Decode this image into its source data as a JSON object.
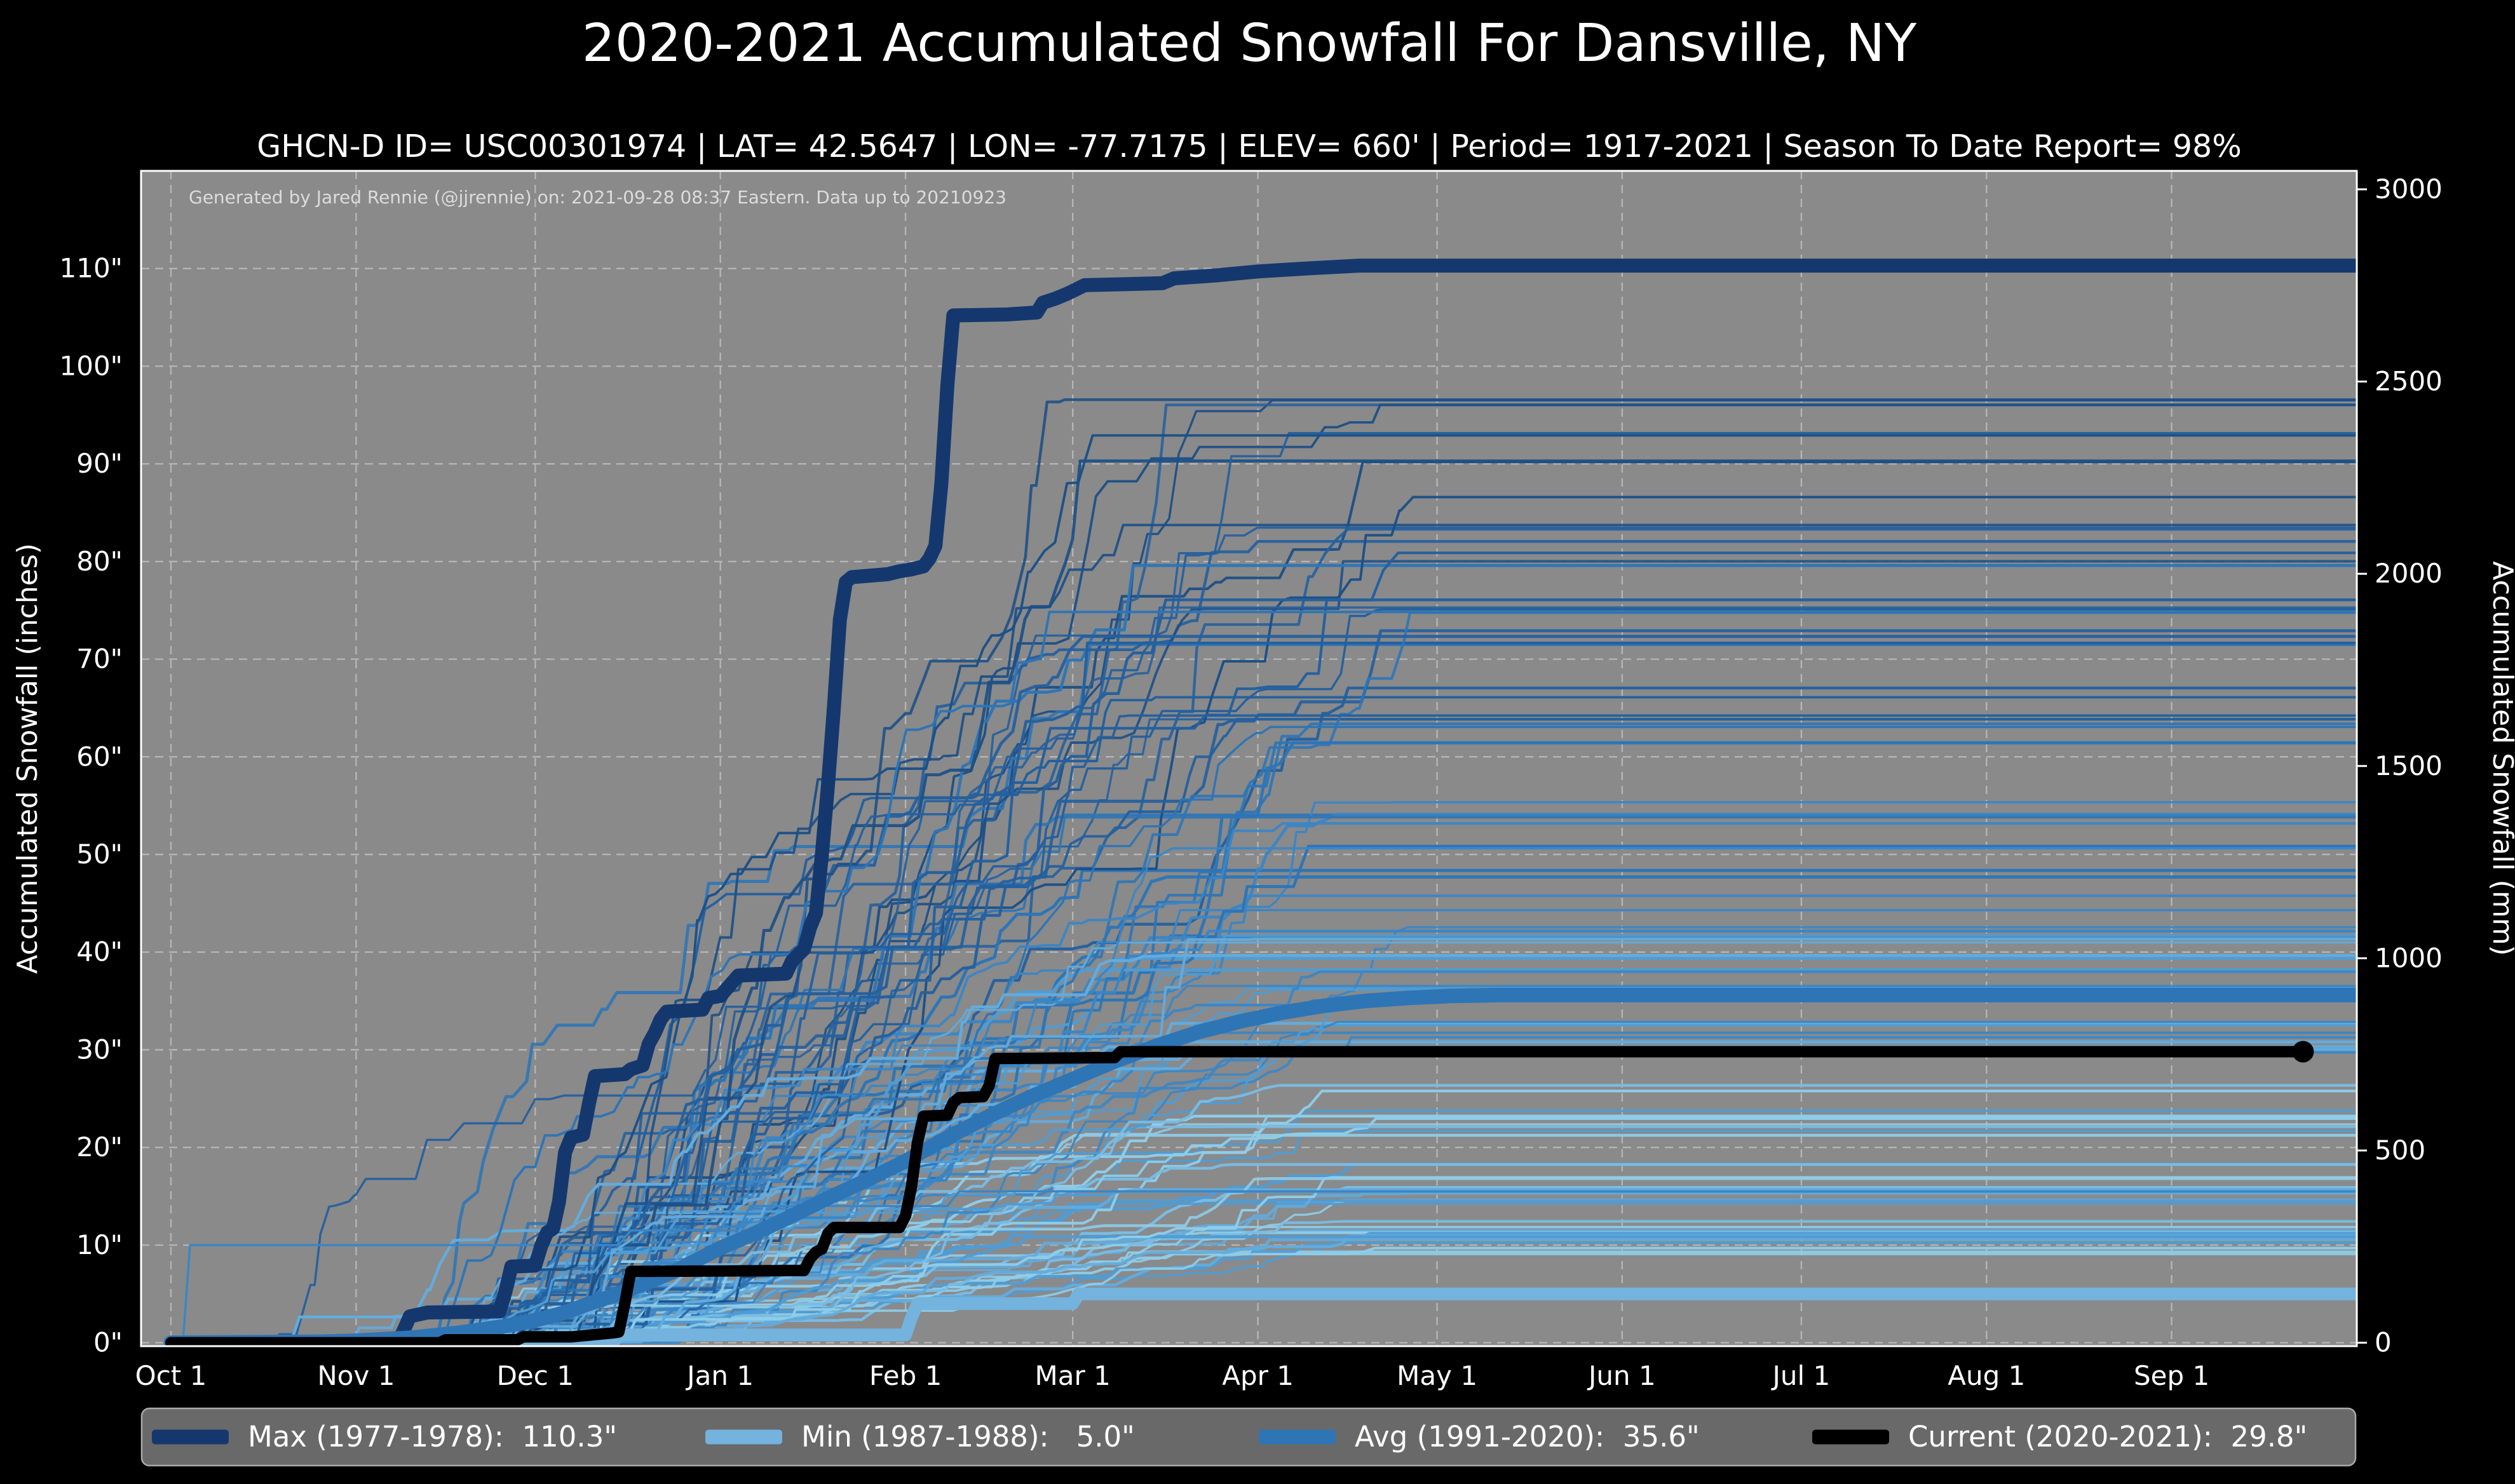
{
  "title": "2020-2021 Accumulated Snowfall For Dansville, NY",
  "subtitle": "GHCN-D ID= USC00301974 | LAT= 42.5647 | LON= -77.7175 | ELEV= 660' | Period= 1917-2021 | Season To Date Report= 98%",
  "annotation": "Generated by Jared Rennie (@jjrennie) on: 2021-09-28 08:37 Eastern. Data up to 20210923",
  "axes": {
    "left_title": "Accumulated Snowfall (inches)",
    "right_title": "Accumulated Snowfall (mm)",
    "x_tick_labels": [
      "Oct 1",
      "Nov 1",
      "Dec 1",
      "Jan 1",
      "Feb 1",
      "Mar 1",
      "Apr 1",
      "May 1",
      "Jun 1",
      "Jul 1",
      "Aug 1",
      "Sep 1"
    ],
    "x_tick_days": [
      0,
      31,
      61,
      92,
      123,
      151,
      182,
      212,
      243,
      273,
      304,
      335
    ],
    "y_ticks_inches": [
      0,
      10,
      20,
      30,
      40,
      50,
      60,
      70,
      80,
      90,
      100,
      110
    ],
    "y_ticks_mm": [
      0,
      500,
      1000,
      1500,
      2000,
      2500,
      3000
    ],
    "xlim_days": [
      -5,
      366
    ],
    "ylim_inches": [
      -0.35,
      120.0
    ],
    "grid": true
  },
  "chart_data": {
    "type": "line",
    "x_unit": "days since Oct 1",
    "series": [
      {
        "name": "max",
        "label": "Max (1977-1978)",
        "value": "110.3\"",
        "color": "#14386e",
        "width": 22,
        "points": [
          [
            0,
            0
          ],
          [
            38,
            0
          ],
          [
            39,
            1.3
          ],
          [
            40,
            2.7
          ],
          [
            43,
            3.1
          ],
          [
            55,
            3.2
          ],
          [
            56,
            5.2
          ],
          [
            57,
            7.8
          ],
          [
            61,
            7.9
          ],
          [
            62,
            9.9
          ],
          [
            63,
            11.3
          ],
          [
            64,
            11.7
          ],
          [
            65,
            14.5
          ],
          [
            66,
            19.5
          ],
          [
            67,
            21
          ],
          [
            69,
            21.3
          ],
          [
            70,
            24.5
          ],
          [
            71,
            27.3
          ],
          [
            76,
            27.5
          ],
          [
            77,
            28
          ],
          [
            79,
            28.4
          ],
          [
            80,
            30.6
          ],
          [
            81,
            31.7
          ],
          [
            82,
            33.1
          ],
          [
            83,
            33.9
          ],
          [
            89,
            34.1
          ],
          [
            90,
            35.3
          ],
          [
            92,
            35.5
          ],
          [
            94,
            36.9
          ],
          [
            95,
            37.6
          ],
          [
            103,
            37.8
          ],
          [
            104,
            39.1
          ],
          [
            105,
            39.7
          ],
          [
            106,
            40.3
          ],
          [
            107,
            42.5
          ],
          [
            108,
            44
          ],
          [
            109,
            50
          ],
          [
            110,
            57
          ],
          [
            111,
            65
          ],
          [
            112,
            74
          ],
          [
            113,
            77.9
          ],
          [
            114,
            78.4
          ],
          [
            120,
            78.7
          ],
          [
            122,
            79
          ],
          [
            124,
            79.2
          ],
          [
            126,
            79.5
          ],
          [
            127,
            80.3
          ],
          [
            128,
            81.6
          ],
          [
            129,
            88
          ],
          [
            130,
            98
          ],
          [
            131,
            105.2
          ],
          [
            140,
            105.3
          ],
          [
            145,
            105.5
          ],
          [
            146,
            106.5
          ],
          [
            148,
            106.9
          ],
          [
            150,
            107.4
          ],
          [
            153,
            108.3
          ],
          [
            166,
            108.5
          ],
          [
            168,
            109
          ],
          [
            175,
            109.3
          ],
          [
            182,
            109.7
          ],
          [
            190,
            110
          ],
          [
            199,
            110.3
          ],
          [
            366,
            110.3
          ]
        ]
      },
      {
        "name": "min",
        "label": "Min (1987-1988)",
        "value": "5.0\"",
        "color": "#73b3dd",
        "width": 20,
        "points": [
          [
            0,
            0
          ],
          [
            74,
            0
          ],
          [
            75,
            0.8
          ],
          [
            123,
            0.8
          ],
          [
            124,
            2.6
          ],
          [
            125,
            4
          ],
          [
            151,
            4
          ],
          [
            152,
            5
          ],
          [
            366,
            5
          ]
        ]
      },
      {
        "name": "avg",
        "label": "Avg (1991-2020)",
        "value": "35.6\"",
        "color": "#2e75b6",
        "width": 23,
        "points": [
          [
            0,
            0
          ],
          [
            25,
            0.1
          ],
          [
            31,
            0.2
          ],
          [
            40,
            0.5
          ],
          [
            48,
            1
          ],
          [
            56,
            1.7
          ],
          [
            61,
            2.3
          ],
          [
            66,
            3.1
          ],
          [
            70,
            4
          ],
          [
            75,
            5
          ],
          [
            80,
            6.2
          ],
          [
            85,
            7.5
          ],
          [
            92,
            9.7
          ],
          [
            97,
            11
          ],
          [
            103,
            12.7
          ],
          [
            110,
            14.8
          ],
          [
            116,
            16.5
          ],
          [
            123,
            18.6
          ],
          [
            130,
            21
          ],
          [
            137,
            23.2
          ],
          [
            144,
            25.2
          ],
          [
            151,
            27
          ],
          [
            158,
            28.8
          ],
          [
            165,
            30.4
          ],
          [
            172,
            31.8
          ],
          [
            179,
            32.9
          ],
          [
            186,
            33.8
          ],
          [
            193,
            34.5
          ],
          [
            200,
            35
          ],
          [
            207,
            35.3
          ],
          [
            214,
            35.5
          ],
          [
            222,
            35.6
          ],
          [
            366,
            35.6
          ]
        ]
      },
      {
        "name": "current",
        "label": "Current (2020-2021)",
        "value": "29.8\"",
        "color": "#000000",
        "width": 18,
        "end_dot": true,
        "points": [
          [
            0,
            0
          ],
          [
            45,
            0
          ],
          [
            46,
            0.3
          ],
          [
            58,
            0.3
          ],
          [
            59,
            0.6
          ],
          [
            67,
            0.6
          ],
          [
            74,
            1
          ],
          [
            75,
            1.1
          ],
          [
            76,
            4
          ],
          [
            77,
            7.3
          ],
          [
            106,
            7.4
          ],
          [
            107,
            8.6
          ],
          [
            108,
            9.3
          ],
          [
            109,
            9.6
          ],
          [
            110,
            11.2
          ],
          [
            111,
            11.8
          ],
          [
            122,
            11.8
          ],
          [
            123,
            13
          ],
          [
            124,
            16
          ],
          [
            125,
            20.5
          ],
          [
            126,
            23.2
          ],
          [
            130,
            23.3
          ],
          [
            131,
            24.6
          ],
          [
            132,
            25.1
          ],
          [
            136,
            25.2
          ],
          [
            137,
            26.3
          ],
          [
            138,
            29.1
          ],
          [
            158,
            29.2
          ],
          [
            159,
            29.8
          ],
          [
            357,
            29.8
          ]
        ]
      }
    ],
    "background_series": {
      "count": 104,
      "seed": 11,
      "palette": [
        "#1c4f86",
        "#24609e",
        "#2e75b6",
        "#3a86c6",
        "#4f9cd4",
        "#63abdc",
        "#79bce4",
        "#8ecde9"
      ],
      "description": "Historical seasons 1917-2021 (approximated spaghetti lines)"
    }
  },
  "legend": {
    "items": [
      {
        "label": "Max (1977-1978):  110.3\"",
        "color": "#14386e"
      },
      {
        "label": "Min (1987-1988):   5.0\"",
        "color": "#73b3dd"
      },
      {
        "label": "Avg (1991-2020):  35.6\"",
        "color": "#2e75b6"
      },
      {
        "label": "Current (2020-2021):  29.8\"",
        "color": "#000000"
      }
    ]
  }
}
